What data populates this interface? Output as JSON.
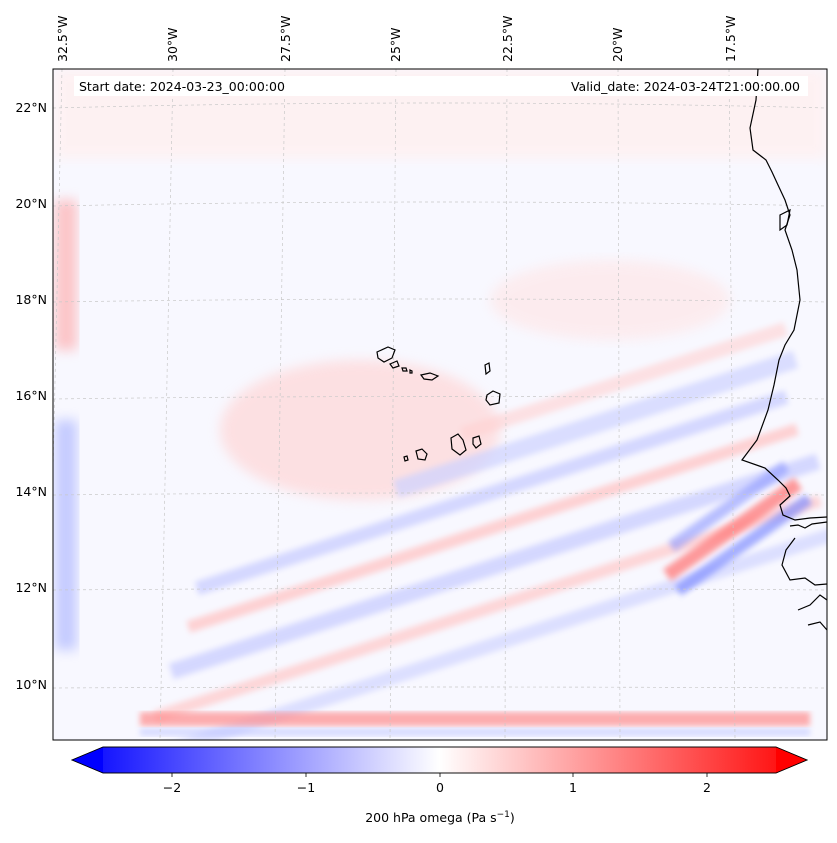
{
  "map": {
    "start_label": "Start date: 2024-03-23_00:00:00",
    "valid_label": "Valid_date: 2024-03-24T21:00:00.00",
    "lon_labels": [
      "32.5°W",
      "30°W",
      "27.5°W",
      "25°W",
      "22.5°W",
      "20°W",
      "17.5°W"
    ],
    "lat_labels": [
      "22°N",
      "20°N",
      "18°N",
      "16°N",
      "14°N",
      "12°N",
      "10°N"
    ],
    "colorbar": {
      "ticks": [
        "−2",
        "−1",
        "0",
        "1",
        "2"
      ],
      "label": "200 hPa omega (Pa s",
      "label_sup": "−1",
      "label_end": ")",
      "vmin": -2.6,
      "vmax": 2.6,
      "colors": {
        "neg": "#0000ff",
        "mid": "#ffffff",
        "pos": "#ff0000"
      }
    },
    "colors": {
      "coast": "#000000",
      "grid": "#c8c8c8",
      "frame": "#000000"
    }
  }
}
